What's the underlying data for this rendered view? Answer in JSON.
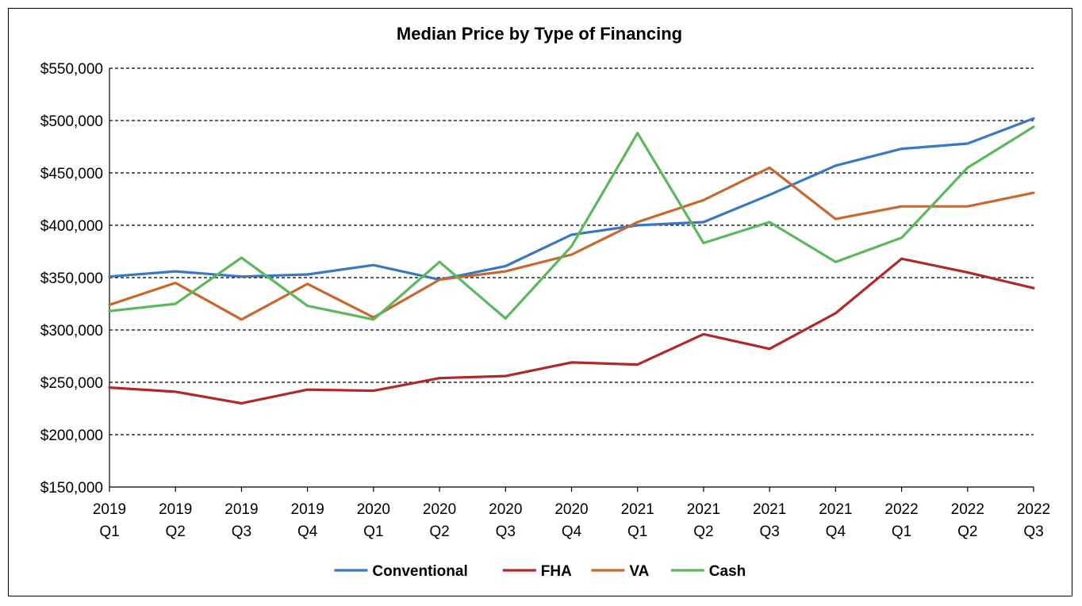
{
  "chart_data": {
    "type": "line",
    "title": "Median Price by Type of Financing",
    "xlabel": "",
    "ylabel": "",
    "categories": [
      "2019 Q1",
      "2019 Q2",
      "2019 Q3",
      "2019 Q4",
      "2020 Q1",
      "2020 Q2",
      "2020 Q3",
      "2020 Q4",
      "2021 Q1",
      "2021 Q2",
      "2021 Q3",
      "2021 Q4",
      "2022 Q1",
      "2022 Q2",
      "2022 Q3"
    ],
    "category_lines": [
      [
        "2019",
        "Q1"
      ],
      [
        "2019",
        "Q2"
      ],
      [
        "2019",
        "Q3"
      ],
      [
        "2019",
        "Q4"
      ],
      [
        "2020",
        "Q1"
      ],
      [
        "2020",
        "Q2"
      ],
      [
        "2020",
        "Q3"
      ],
      [
        "2020",
        "Q4"
      ],
      [
        "2021",
        "Q1"
      ],
      [
        "2021",
        "Q2"
      ],
      [
        "2021",
        "Q3"
      ],
      [
        "2021",
        "Q4"
      ],
      [
        "2022",
        "Q1"
      ],
      [
        "2022",
        "Q2"
      ],
      [
        "2022",
        "Q3"
      ]
    ],
    "ylim": [
      150000,
      550000
    ],
    "yticks": [
      150000,
      200000,
      250000,
      300000,
      350000,
      400000,
      450000,
      500000,
      550000
    ],
    "ytick_labels": [
      "$150,000",
      "$200,000",
      "$250,000",
      "$300,000",
      "$350,000",
      "$400,000",
      "$450,000",
      "$500,000",
      "$550,000"
    ],
    "grid": "horizontal dashed",
    "legend_position": "bottom",
    "series": [
      {
        "name": "Conventional",
        "color": "#3a78c0",
        "values": [
          351000,
          356000,
          351000,
          353000,
          362000,
          348000,
          361000,
          391000,
          400000,
          403000,
          429000,
          457000,
          473000,
          478000,
          502000
        ]
      },
      {
        "name": "FHA",
        "color": "#b1282a",
        "values": [
          245000,
          241000,
          230000,
          243000,
          242000,
          254000,
          256000,
          269000,
          267000,
          296000,
          282000,
          316000,
          368000,
          355000,
          340000
        ]
      },
      {
        "name": "VA",
        "color": "#c9682e",
        "values": [
          324000,
          345000,
          310000,
          344000,
          312000,
          348000,
          356000,
          372000,
          403000,
          424000,
          455000,
          406000,
          418000,
          418000,
          431000
        ]
      },
      {
        "name": "Cash",
        "color": "#5cb85c",
        "values": [
          318000,
          325000,
          369000,
          323000,
          310000,
          365000,
          311000,
          380000,
          488000,
          383000,
          403000,
          365000,
          388000,
          455000,
          494000
        ]
      }
    ]
  }
}
